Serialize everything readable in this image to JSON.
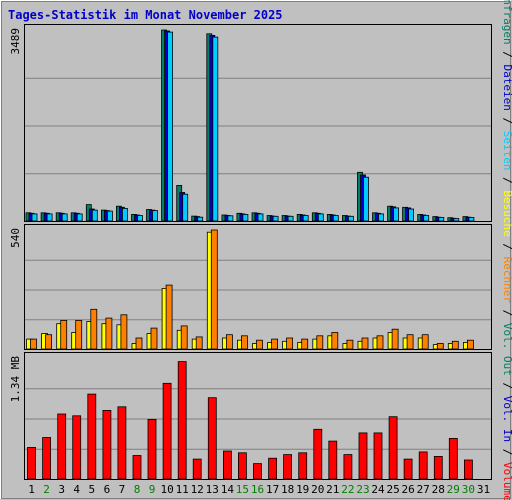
{
  "title": "Tages-Statistik im Monat November 2025",
  "colors": {
    "background": "#c0c0c0",
    "title": "#0000cc",
    "anfragen": "#008066",
    "dateien": "#0000cc",
    "seiten": "#00ccff",
    "besuche": "#ffff00",
    "rechner": "#ff8000",
    "vol_out": "#008066",
    "vol_in": "#0000cc",
    "volumen": "#ff0000",
    "weekday_label": "#000000",
    "weekend_label": "#008000"
  },
  "legend_right": [
    {
      "text": "Anfragen",
      "color": "#008066"
    },
    {
      "text": " / ",
      "color": "#000000"
    },
    {
      "text": "Dateien",
      "color": "#0000cc"
    },
    {
      "text": " / ",
      "color": "#000000"
    },
    {
      "text": "Seiten",
      "color": "#00ccff"
    },
    {
      "text": " / ",
      "color": "#000000"
    },
    {
      "text": "Besuche",
      "color": "#ffff00"
    },
    {
      "text": " / ",
      "color": "#000000"
    },
    {
      "text": "Rechner",
      "color": "#ff8000"
    },
    {
      "text": " / ",
      "color": "#000000"
    },
    {
      "text": "Vol. Out",
      "color": "#008066"
    },
    {
      "text": " / ",
      "color": "#000000"
    },
    {
      "text": "Vol. In",
      "color": "#0000cc"
    },
    {
      "text": " / ",
      "color": "#000000"
    },
    {
      "text": "Volumen",
      "color": "#ff0000"
    }
  ],
  "chart_data": [
    {
      "type": "bar",
      "panel": "requests",
      "y_max_label": "3489",
      "ylim": [
        0,
        3489
      ],
      "grid": true,
      "categories": [
        "1",
        "2",
        "3",
        "4",
        "5",
        "6",
        "7",
        "8",
        "9",
        "10",
        "11",
        "12",
        "13",
        "14",
        "15",
        "16",
        "17",
        "18",
        "19",
        "20",
        "21",
        "22",
        "23",
        "24",
        "25",
        "26",
        "27",
        "28",
        "29",
        "30",
        "31"
      ],
      "weekend": [
        false,
        true,
        false,
        false,
        false,
        false,
        false,
        true,
        true,
        false,
        false,
        false,
        false,
        false,
        true,
        true,
        false,
        false,
        false,
        false,
        false,
        true,
        true,
        false,
        false,
        false,
        false,
        false,
        true,
        true,
        false
      ],
      "series": [
        {
          "name": "Anfragen",
          "values": [
            150,
            150,
            150,
            150,
            300,
            200,
            270,
            120,
            210,
            3489,
            650,
            90,
            3420,
            110,
            140,
            150,
            100,
            100,
            120,
            150,
            120,
            100,
            890,
            150,
            270,
            250,
            120,
            80,
            60,
            80,
            0
          ]
        },
        {
          "name": "Dateien",
          "values": [
            140,
            140,
            140,
            140,
            220,
            190,
            250,
            110,
            200,
            3470,
            520,
            80,
            3390,
            100,
            130,
            140,
            90,
            90,
            110,
            140,
            110,
            90,
            840,
            140,
            260,
            240,
            110,
            70,
            50,
            70,
            0
          ]
        },
        {
          "name": "Seiten",
          "values": [
            130,
            130,
            130,
            130,
            200,
            180,
            230,
            100,
            190,
            3450,
            490,
            70,
            3360,
            95,
            120,
            130,
            85,
            85,
            100,
            130,
            100,
            85,
            800,
            130,
            240,
            220,
            100,
            65,
            45,
            65,
            0
          ]
        }
      ]
    },
    {
      "type": "bar",
      "panel": "visits",
      "y_max_label": "540",
      "ylim": [
        0,
        540
      ],
      "grid": true,
      "categories": [
        "1",
        "2",
        "3",
        "4",
        "5",
        "6",
        "7",
        "8",
        "9",
        "10",
        "11",
        "12",
        "13",
        "14",
        "15",
        "16",
        "17",
        "18",
        "19",
        "20",
        "21",
        "22",
        "23",
        "24",
        "25",
        "26",
        "27",
        "28",
        "29",
        "30",
        "31"
      ],
      "series": [
        {
          "name": "Besuche",
          "values": [
            45,
            70,
            115,
            75,
            125,
            115,
            110,
            25,
            70,
            275,
            85,
            45,
            530,
            50,
            40,
            25,
            30,
            35,
            30,
            45,
            60,
            25,
            35,
            50,
            75,
            50,
            50,
            20,
            25,
            30,
            0
          ]
        },
        {
          "name": "Rechner",
          "values": [
            45,
            65,
            130,
            130,
            180,
            140,
            155,
            50,
            95,
            290,
            105,
            55,
            540,
            65,
            60,
            40,
            45,
            50,
            45,
            60,
            75,
            40,
            50,
            60,
            90,
            65,
            65,
            25,
            35,
            40,
            0
          ]
        }
      ]
    },
    {
      "type": "bar",
      "panel": "volume",
      "y_max_label": "1.34 MB",
      "ylim": [
        0,
        1.34
      ],
      "grid": true,
      "categories": [
        "1",
        "2",
        "3",
        "4",
        "5",
        "6",
        "7",
        "8",
        "9",
        "10",
        "11",
        "12",
        "13",
        "14",
        "15",
        "16",
        "17",
        "18",
        "19",
        "20",
        "21",
        "22",
        "23",
        "24",
        "25",
        "26",
        "27",
        "28",
        "29",
        "30",
        "31"
      ],
      "series": [
        {
          "name": "Volumen",
          "values": [
            0.35,
            0.46,
            0.72,
            0.7,
            0.94,
            0.76,
            0.8,
            0.26,
            0.66,
            1.06,
            1.3,
            0.22,
            0.9,
            0.31,
            0.29,
            0.17,
            0.23,
            0.27,
            0.29,
            0.55,
            0.42,
            0.27,
            0.51,
            0.51,
            0.69,
            0.22,
            0.3,
            0.25,
            0.45,
            0.21,
            0
          ]
        }
      ]
    }
  ]
}
